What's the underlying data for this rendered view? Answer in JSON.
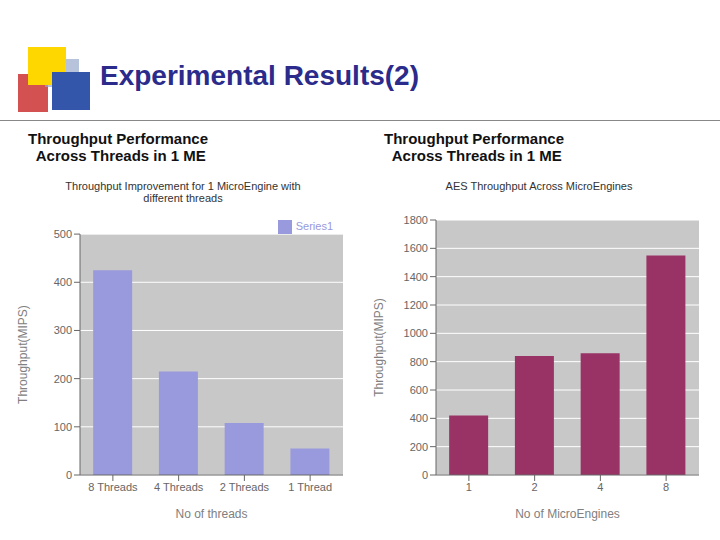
{
  "title": "Experimental Results(2)",
  "chart_data": [
    {
      "type": "bar",
      "subtitle": "Throughput Performance\n  Across Threads in 1 ME",
      "title": "Throughput Improvement for 1 MicroEngine with\ndifferent threads",
      "categories": [
        "8 Threads",
        "4 Threads",
        "2 Threads",
        "1 Thread"
      ],
      "series": [
        {
          "name": "Series1",
          "color": "#9999DD",
          "values": [
            425,
            215,
            108,
            55
          ]
        }
      ],
      "xlabel": "No of threads",
      "ylabel": "Throughput(MIPS)",
      "ylim": [
        0,
        500
      ],
      "yticks": [
        0,
        100,
        200,
        300,
        400,
        500
      ],
      "grid": true,
      "legend": "upper right"
    },
    {
      "type": "bar",
      "subtitle": "Throughput Performance\n  Across Threads in 1 ME",
      "title": "AES Throughput Across MicroEngines",
      "categories": [
        "1",
        "2",
        "4",
        "8"
      ],
      "values": [
        420,
        840,
        860,
        1550
      ],
      "color": "#993366",
      "xlabel": "No of MicroEngines",
      "ylabel": "Throughput(MIPS)",
      "ylim": [
        0,
        1800
      ],
      "yticks": [
        0,
        200,
        400,
        600,
        800,
        1000,
        1200,
        1400,
        1600,
        1800
      ],
      "grid": true
    }
  ]
}
